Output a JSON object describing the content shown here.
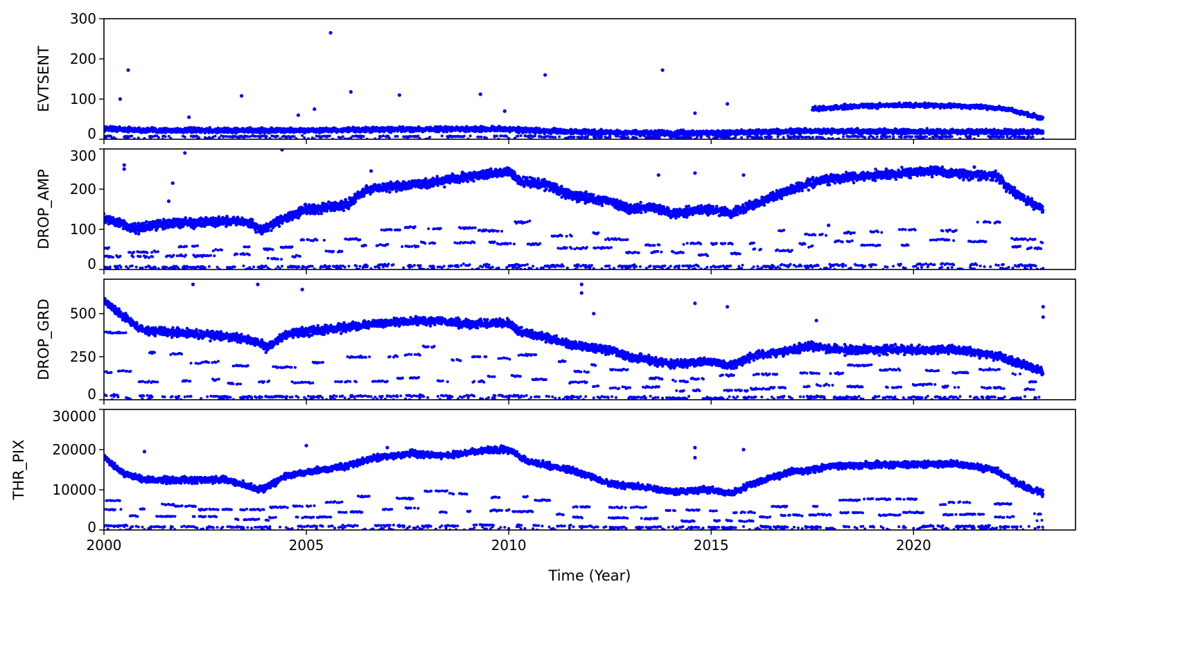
{
  "chart_data": {
    "type": "scatter",
    "xlabel": "Time (Year)",
    "xlim": [
      2000,
      2024
    ],
    "xticks": [
      2000,
      2005,
      2010,
      2015,
      2020
    ],
    "color": "#0000ff",
    "panels": [
      {
        "ylabel": "EVTSENT",
        "ylim": [
          0,
          300
        ],
        "yticks": [
          0,
          100,
          200,
          300
        ],
        "trend": [
          [
            2000,
            27
          ],
          [
            2001,
            22
          ],
          [
            2005,
            22
          ],
          [
            2008,
            25
          ],
          [
            2010,
            25
          ],
          [
            2011,
            20
          ],
          [
            2013,
            16
          ],
          [
            2015,
            15
          ],
          [
            2017,
            20
          ],
          [
            2023.2,
            18
          ]
        ],
        "trend_spread": 6,
        "extra_bands": [
          {
            "range": [
              2017.5,
              2023.2
            ],
            "points": [
              [
                2017.5,
                75
              ],
              [
                2018.5,
                82
              ],
              [
                2020,
                85
              ],
              [
                2021.5,
                82
              ],
              [
                2022.3,
                75
              ],
              [
                2023.2,
                52
              ]
            ],
            "spread": 6
          }
        ],
        "low_fraction": [
          0.3
        ],
        "outliers": [
          [
            2000.4,
            100
          ],
          [
            2000.6,
            172
          ],
          [
            2003.4,
            108
          ],
          [
            2005.6,
            265
          ],
          [
            2006.1,
            118
          ],
          [
            2007.3,
            110
          ],
          [
            2009.3,
            112
          ],
          [
            2009.9,
            70
          ],
          [
            2010.9,
            160
          ],
          [
            2013.8,
            172
          ],
          [
            2014.6,
            65
          ],
          [
            2015.4,
            88
          ],
          [
            2002.1,
            55
          ],
          [
            2004.8,
            60
          ],
          [
            2005.2,
            75
          ]
        ]
      },
      {
        "ylabel": "DROP_AMP",
        "ylim": [
          0,
          300
        ],
        "yticks": [
          0,
          100,
          200,
          300
        ],
        "trend": [
          [
            2000,
            130
          ],
          [
            2000.8,
            100
          ],
          [
            2001.5,
            115
          ],
          [
            2003.5,
            120
          ],
          [
            2003.9,
            100
          ],
          [
            2005,
            150
          ],
          [
            2006,
            160
          ],
          [
            2006.5,
            200
          ],
          [
            2008,
            215
          ],
          [
            2009,
            230
          ],
          [
            2010,
            245
          ],
          [
            2010.3,
            220
          ],
          [
            2011,
            210
          ],
          [
            2011.5,
            185
          ],
          [
            2012.5,
            170
          ],
          [
            2013,
            150
          ],
          [
            2013.5,
            155
          ],
          [
            2014,
            140
          ],
          [
            2015,
            150
          ],
          [
            2015.5,
            140
          ],
          [
            2016,
            160
          ],
          [
            2017,
            200
          ],
          [
            2017.5,
            215
          ],
          [
            2018,
            225
          ],
          [
            2019,
            235
          ],
          [
            2020.5,
            245
          ],
          [
            2021.5,
            235
          ],
          [
            2022,
            235
          ],
          [
            2022.5,
            190
          ],
          [
            2023.2,
            150
          ]
        ],
        "trend_spread": 12,
        "extra_bands": [],
        "low_fraction": [
          0.45,
          0.28,
          0.05
        ],
        "outliers": [
          [
            2000.5,
            260
          ],
          [
            2000.5,
            250
          ],
          [
            2002,
            290
          ],
          [
            2001.7,
            215
          ],
          [
            2001.6,
            170
          ],
          [
            2004.4,
            298
          ],
          [
            2006.6,
            245
          ],
          [
            2013.7,
            235
          ],
          [
            2014.6,
            240
          ],
          [
            2015.8,
            235
          ],
          [
            2017.9,
            110
          ],
          [
            2021.5,
            255
          ]
        ]
      },
      {
        "ylabel": "DROP_GRD",
        "ylim": [
          0,
          700
        ],
        "yticks": [
          0,
          250,
          500
        ],
        "trend": [
          [
            2000,
            580
          ],
          [
            2000.5,
            480
          ],
          [
            2001,
            400
          ],
          [
            2003,
            370
          ],
          [
            2003.8,
            340
          ],
          [
            2004,
            300
          ],
          [
            2004.5,
            380
          ],
          [
            2006,
            420
          ],
          [
            2007,
            450
          ],
          [
            2008,
            460
          ],
          [
            2009,
            440
          ],
          [
            2010,
            445
          ],
          [
            2010.3,
            390
          ],
          [
            2011,
            360
          ],
          [
            2011.5,
            320
          ],
          [
            2012.5,
            290
          ],
          [
            2013,
            245
          ],
          [
            2013.5,
            230
          ],
          [
            2014,
            210
          ],
          [
            2015,
            220
          ],
          [
            2015.5,
            200
          ],
          [
            2016,
            250
          ],
          [
            2017,
            290
          ],
          [
            2017.5,
            310
          ],
          [
            2018,
            290
          ],
          [
            2021,
            290
          ],
          [
            2022,
            260
          ],
          [
            2023.2,
            165
          ]
        ],
        "trend_spread": 25,
        "extra_bands": [],
        "low_fraction": [
          0.6,
          0.28,
          0.05
        ],
        "outliers": [
          [
            2002.2,
            670
          ],
          [
            2003.8,
            670
          ],
          [
            2004.9,
            640
          ],
          [
            2011.8,
            670
          ],
          [
            2011.8,
            620
          ],
          [
            2012.1,
            500
          ],
          [
            2014.6,
            560
          ],
          [
            2015.4,
            540
          ],
          [
            2017.6,
            460
          ],
          [
            2023.2,
            540
          ],
          [
            2023.2,
            480
          ]
        ]
      },
      {
        "ylabel": "THR_PIX",
        "ylim": [
          0,
          30000
        ],
        "yticks": [
          0,
          10000,
          20000,
          30000
        ],
        "trend": [
          [
            2000,
            18000
          ],
          [
            2000.5,
            14000
          ],
          [
            2001,
            12500
          ],
          [
            2003,
            12500
          ],
          [
            2003.9,
            10000
          ],
          [
            2004.5,
            13500
          ],
          [
            2006,
            16000
          ],
          [
            2006.5,
            17500
          ],
          [
            2007.5,
            19000
          ],
          [
            2008.5,
            18500
          ],
          [
            2009.5,
            20000
          ],
          [
            2010,
            20000
          ],
          [
            2010.5,
            17000
          ],
          [
            2011.5,
            15000
          ],
          [
            2012,
            13500
          ],
          [
            2012.5,
            11500
          ],
          [
            2013.5,
            10500
          ],
          [
            2014,
            9500
          ],
          [
            2015,
            10000
          ],
          [
            2015.5,
            9000
          ],
          [
            2016,
            11500
          ],
          [
            2017,
            14500
          ],
          [
            2017.5,
            15000
          ],
          [
            2018,
            16000
          ],
          [
            2021,
            16500
          ],
          [
            2022,
            15000
          ],
          [
            2022.5,
            12000
          ],
          [
            2023.2,
            9000
          ]
        ],
        "trend_spread": 800,
        "extra_bands": [],
        "low_fraction": [
          0.45,
          0.25,
          0.06
        ],
        "outliers": [
          [
            2001,
            19500
          ],
          [
            2005,
            21000
          ],
          [
            2007,
            20500
          ],
          [
            2014.6,
            20500
          ],
          [
            2015.8,
            20000
          ],
          [
            2014.6,
            18000
          ]
        ]
      }
    ]
  }
}
